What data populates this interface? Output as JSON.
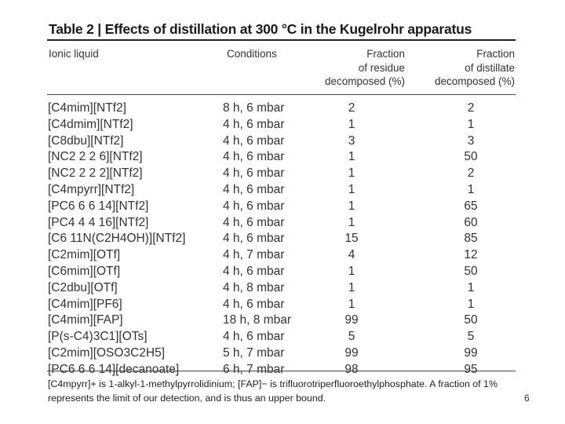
{
  "table": {
    "title": "Table 2 | Effects of distillation at 300 °C in the Kugelrohr apparatus",
    "headers": {
      "ionic_liquid": "Ionic liquid",
      "conditions": "Conditions",
      "residue": [
        "Fraction",
        "of residue",
        "decomposed (%)"
      ],
      "distillate": [
        "Fraction",
        "of distillate",
        "decomposed (%)"
      ]
    },
    "rows": [
      {
        "ionic_liquid": "[C4mim][NTf2]",
        "conditions": "8 h, 6 mbar",
        "residue": "2",
        "distillate": "2"
      },
      {
        "ionic_liquid": "[C4dmim][NTf2]",
        "conditions": "4 h, 6 mbar",
        "residue": "1",
        "distillate": "1"
      },
      {
        "ionic_liquid": "[C8dbu][NTf2]",
        "conditions": "4 h, 6 mbar",
        "residue": "3",
        "distillate": "3"
      },
      {
        "ionic_liquid": "[NC2 2 2 6][NTf2]",
        "conditions": "4 h, 6 mbar",
        "residue": "1",
        "distillate": "50"
      },
      {
        "ionic_liquid": "[NC2 2 2 2][NTf2]",
        "conditions": "4 h, 6 mbar",
        "residue": "1",
        "distillate": "2"
      },
      {
        "ionic_liquid": "[C4mpyrr][NTf2]",
        "conditions": "4 h, 6 mbar",
        "residue": "1",
        "distillate": "1"
      },
      {
        "ionic_liquid": "[PC6 6 6 14][NTf2]",
        "conditions": "4 h, 6 mbar",
        "residue": "1",
        "distillate": "65"
      },
      {
        "ionic_liquid": "[PC4 4 4 16][NTf2]",
        "conditions": "4 h, 6 mbar",
        "residue": "1",
        "distillate": "60"
      },
      {
        "ionic_liquid": "[C6 11N(C2H4OH)][NTf2]",
        "conditions": "4 h, 6 mbar",
        "residue": "15",
        "distillate": "85"
      },
      {
        "ionic_liquid": "[C2mim][OTf]",
        "conditions": "4 h, 7 mbar",
        "residue": "4",
        "distillate": "12"
      },
      {
        "ionic_liquid": "[C6mim][OTf]",
        "conditions": "4 h, 6 mbar",
        "residue": "1",
        "distillate": "50"
      },
      {
        "ionic_liquid": "[C2dbu][OTf]",
        "conditions": "4 h, 8 mbar",
        "residue": "1",
        "distillate": "1"
      },
      {
        "ionic_liquid": "[C4mim][PF6]",
        "conditions": "4 h, 6 mbar",
        "residue": "1",
        "distillate": "1"
      },
      {
        "ionic_liquid": "[C4mim][FAP]",
        "conditions": "18 h, 8 mbar",
        "residue": "99",
        "distillate": "50"
      },
      {
        "ionic_liquid": "[P(s-C4)3C1][OTs]",
        "conditions": "4 h, 6 mbar",
        "residue": "5",
        "distillate": "5"
      },
      {
        "ionic_liquid": "[C2mim][OSO3C2H5]",
        "conditions": "5 h, 7 mbar",
        "residue": "99",
        "distillate": "99"
      },
      {
        "ionic_liquid": "[PC6 6 6 14][decanoate]",
        "conditions": "6 h, 7 mbar",
        "residue": "98",
        "distillate": "95"
      }
    ],
    "footnote": "[C4mpyrr]+ is 1-alkyl-1-methylpyrrolidinium; [FAP]− is trifluorotriperfluoroethylphosphate. A fraction of 1% represents the limit of our detection, and is thus an upper bound."
  },
  "page_number": "6"
}
